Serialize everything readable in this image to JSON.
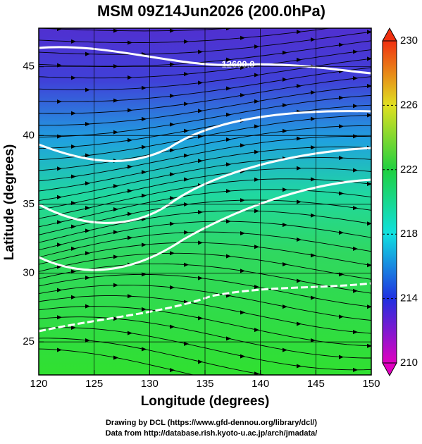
{
  "map": {
    "title": "MSM 09Z14Jun2026 (200.0hPa)",
    "xlabel": "Longitude (degrees)",
    "ylabel": "Latitude  (degrees)",
    "xlim": [
      120,
      150
    ],
    "ylim": [
      22.6,
      47.8
    ],
    "xticks": [
      120,
      125,
      130,
      135,
      140,
      145,
      150
    ],
    "yticks": [
      25,
      30,
      35,
      40,
      45
    ],
    "grid": true,
    "contour_label": "12600.0",
    "colorbar": {
      "lim": [
        210,
        230
      ],
      "ticks": [
        210,
        214,
        218,
        222,
        226,
        230
      ],
      "colors": [
        "#e000c0",
        "#2030e0",
        "#10e0e0",
        "#20d040",
        "#e0e020",
        "#f03010"
      ]
    },
    "footer": [
      "Drawing by DCL (https://www.gfd-dennou.org/library/dcl/)",
      "Data from http://database.rish.kyoto-u.ac.jp/arch/jmadata/"
    ]
  }
}
